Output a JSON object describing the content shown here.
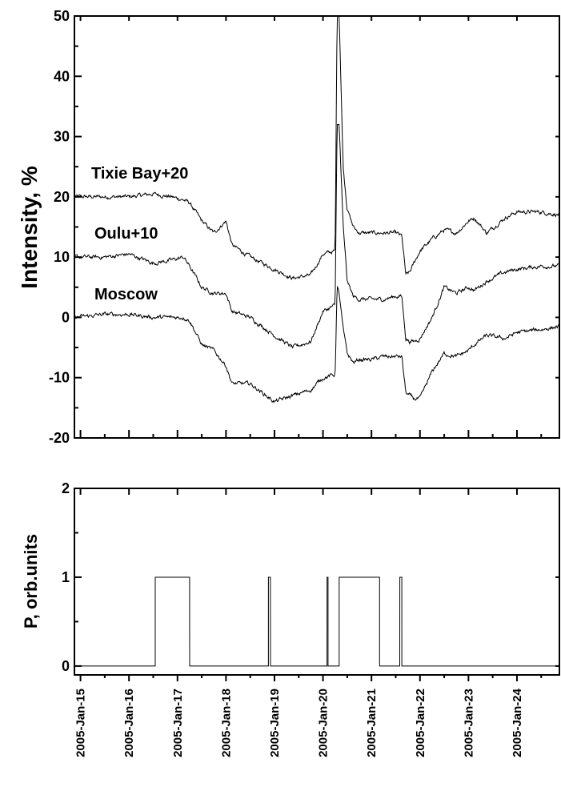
{
  "chart_data": [
    {
      "type": "line",
      "panel": "top",
      "ylabel": "Intensity, %",
      "xlabel": "",
      "ylim": [
        -20,
        50
      ],
      "yticks": [
        -20,
        -10,
        0,
        10,
        20,
        30,
        40,
        50
      ],
      "xlim": [
        "2005-Jan-14 21:00",
        "2005-Jan-24 21:00"
      ],
      "x_tick_labels": [
        "2005-Jan-15",
        "2005-Jan-16",
        "2005-Jan-17",
        "2005-Jan-18",
        "2005-Jan-19",
        "2005-Jan-20",
        "2005-Jan-21",
        "2005-Jan-22",
        "2005-Jan-23",
        "2005-Jan-24"
      ],
      "grid": false,
      "series": [
        {
          "name": "Tixie Bay+20",
          "x": [
            "2005-Jan-14 21:00",
            "2005-Jan-15 12:00",
            "2005-Jan-16 00:00",
            "2005-Jan-16 12:00",
            "2005-Jan-16 21:00",
            "2005-Jan-17 03:00",
            "2005-Jan-17 06:00",
            "2005-Jan-17 12:00",
            "2005-Jan-17 15:00",
            "2005-Jan-17 18:00",
            "2005-Jan-18 00:00",
            "2005-Jan-18 03:00",
            "2005-Jan-18 12:00",
            "2005-Jan-19 00:00",
            "2005-Jan-19 09:00",
            "2005-Jan-19 18:00",
            "2005-Jan-20 00:00",
            "2005-Jan-20 06:00",
            "2005-Jan-20 07:00",
            "2005-Jan-20 08:00",
            "2005-Jan-20 10:00",
            "2005-Jan-20 12:00",
            "2005-Jan-20 15:00",
            "2005-Jan-20 18:00",
            "2005-Jan-21 00:00",
            "2005-Jan-21 06:00",
            "2005-Jan-21 12:00",
            "2005-Jan-21 15:00",
            "2005-Jan-21 17:00",
            "2005-Jan-21 19:00",
            "2005-Jan-21 21:00",
            "2005-Jan-22 00:00",
            "2005-Jan-22 06:00",
            "2005-Jan-22 12:00",
            "2005-Jan-22 18:00",
            "2005-Jan-23 00:00",
            "2005-Jan-23 03:00",
            "2005-Jan-23 09:00",
            "2005-Jan-23 18:00",
            "2005-Jan-24 00:00",
            "2005-Jan-24 12:00",
            "2005-Jan-24 21:00"
          ],
          "y": [
            20,
            20,
            20,
            20.5,
            20,
            19.5,
            19,
            16,
            15,
            14,
            16,
            12,
            10,
            8,
            6.5,
            7,
            10.5,
            11,
            50,
            50,
            25,
            18,
            15,
            14,
            14,
            14,
            14,
            13.5,
            7,
            7.5,
            9,
            11,
            13,
            14.5,
            14,
            16,
            16.5,
            14,
            16.5,
            17.5,
            17.5,
            17
          ]
        },
        {
          "name": "Oulu+10",
          "x": [
            "2005-Jan-14 21:00",
            "2005-Jan-15 12:00",
            "2005-Jan-16 00:00",
            "2005-Jan-16 12:00",
            "2005-Jan-16 21:00",
            "2005-Jan-17 03:00",
            "2005-Jan-17 06:00",
            "2005-Jan-17 12:00",
            "2005-Jan-17 15:00",
            "2005-Jan-17 18:00",
            "2005-Jan-18 00:00",
            "2005-Jan-18 03:00",
            "2005-Jan-18 12:00",
            "2005-Jan-19 00:00",
            "2005-Jan-19 09:00",
            "2005-Jan-19 18:00",
            "2005-Jan-20 00:00",
            "2005-Jan-20 06:00",
            "2005-Jan-20 07:00",
            "2005-Jan-20 08:00",
            "2005-Jan-20 10:00",
            "2005-Jan-20 12:00",
            "2005-Jan-20 15:00",
            "2005-Jan-20 18:00",
            "2005-Jan-21 00:00",
            "2005-Jan-21 06:00",
            "2005-Jan-21 12:00",
            "2005-Jan-21 15:00",
            "2005-Jan-21 17:00",
            "2005-Jan-21 19:00",
            "2005-Jan-21 21:00",
            "2005-Jan-22 00:00",
            "2005-Jan-22 06:00",
            "2005-Jan-22 12:00",
            "2005-Jan-22 18:00",
            "2005-Jan-23 00:00",
            "2005-Jan-23 03:00",
            "2005-Jan-23 09:00",
            "2005-Jan-23 18:00",
            "2005-Jan-24 00:00",
            "2005-Jan-24 12:00",
            "2005-Jan-24 21:00"
          ],
          "y": [
            10,
            10,
            10.5,
            9,
            9.5,
            10,
            8.5,
            5,
            4.5,
            4,
            4,
            1,
            0,
            -3,
            -5,
            -4,
            1,
            2,
            32,
            32,
            15,
            6,
            3.5,
            3,
            3,
            3,
            3.5,
            3.5,
            -3.5,
            -4,
            -4,
            -3.5,
            0,
            5,
            4,
            5,
            4.5,
            6,
            7.5,
            8,
            8.5,
            8.5
          ]
        },
        {
          "name": "Moscow",
          "x": [
            "2005-Jan-14 21:00",
            "2005-Jan-15 12:00",
            "2005-Jan-16 00:00",
            "2005-Jan-16 12:00",
            "2005-Jan-16 21:00",
            "2005-Jan-17 03:00",
            "2005-Jan-17 06:00",
            "2005-Jan-17 12:00",
            "2005-Jan-17 15:00",
            "2005-Jan-17 18:00",
            "2005-Jan-18 00:00",
            "2005-Jan-18 03:00",
            "2005-Jan-18 12:00",
            "2005-Jan-19 00:00",
            "2005-Jan-19 09:00",
            "2005-Jan-19 18:00",
            "2005-Jan-20 00:00",
            "2005-Jan-20 06:00",
            "2005-Jan-20 07:00",
            "2005-Jan-20 08:00",
            "2005-Jan-20 10:00",
            "2005-Jan-20 12:00",
            "2005-Jan-20 15:00",
            "2005-Jan-20 18:00",
            "2005-Jan-21 00:00",
            "2005-Jan-21 06:00",
            "2005-Jan-21 12:00",
            "2005-Jan-21 15:00",
            "2005-Jan-21 17:00",
            "2005-Jan-21 19:00",
            "2005-Jan-21 21:00",
            "2005-Jan-22 00:00",
            "2005-Jan-22 06:00",
            "2005-Jan-22 12:00",
            "2005-Jan-22 18:00",
            "2005-Jan-23 00:00",
            "2005-Jan-23 03:00",
            "2005-Jan-23 09:00",
            "2005-Jan-23 18:00",
            "2005-Jan-24 00:00",
            "2005-Jan-24 12:00",
            "2005-Jan-24 21:00"
          ],
          "y": [
            0,
            0.5,
            0.5,
            0,
            0,
            0,
            -0.5,
            -4.5,
            -5,
            -5.5,
            -8,
            -11,
            -11,
            -14,
            -13,
            -12,
            -10,
            -9.5,
            5,
            4,
            -2,
            -6,
            -7.5,
            -7,
            -7,
            -6.5,
            -6.5,
            -6.5,
            -12.5,
            -13,
            -13.5,
            -13.5,
            -9,
            -6,
            -6.5,
            -5.5,
            -4.5,
            -3,
            -3.5,
            -2.5,
            -2,
            -1.5
          ]
        }
      ]
    },
    {
      "type": "line",
      "panel": "bottom",
      "ylabel": "P, orb.units",
      "xlabel": "",
      "ylim": [
        -0.1,
        2
      ],
      "yticks": [
        0,
        1,
        2
      ],
      "xlim": [
        "2005-Jan-14 21:00",
        "2005-Jan-24 21:00"
      ],
      "x_tick_labels": [
        "2005-Jan-15",
        "2005-Jan-16",
        "2005-Jan-17",
        "2005-Jan-18",
        "2005-Jan-19",
        "2005-Jan-20",
        "2005-Jan-21",
        "2005-Jan-22",
        "2005-Jan-23",
        "2005-Jan-24"
      ],
      "grid": false,
      "series": [
        {
          "name": "",
          "x": [
            "2005-Jan-14 21:00",
            "2005-Jan-16 13:00",
            "2005-Jan-16 13:01",
            "2005-Jan-17 06:00",
            "2005-Jan-17 06:01",
            "2005-Jan-18 21:00",
            "2005-Jan-18 21:01",
            "2005-Jan-18 22:00",
            "2005-Jan-18 22:01",
            "2005-Jan-20 02:00",
            "2005-Jan-20 02:01",
            "2005-Jan-20 02:30",
            "2005-Jan-20 02:31",
            "2005-Jan-20 08:00",
            "2005-Jan-20 08:01",
            "2005-Jan-21 04:00",
            "2005-Jan-21 04:01",
            "2005-Jan-21 05:00",
            "2005-Jan-21 05:01",
            "2005-Jan-21 14:00",
            "2005-Jan-21 14:01",
            "2005-Jan-21 15:00",
            "2005-Jan-21 15:01",
            "2005-Jan-24 21:00"
          ],
          "y": [
            0,
            0,
            1,
            1,
            0,
            0,
            1,
            1,
            0,
            0,
            1,
            1,
            0,
            0,
            1,
            1,
            0,
            0,
            0,
            0,
            1,
            1,
            0,
            0
          ]
        }
      ]
    }
  ]
}
